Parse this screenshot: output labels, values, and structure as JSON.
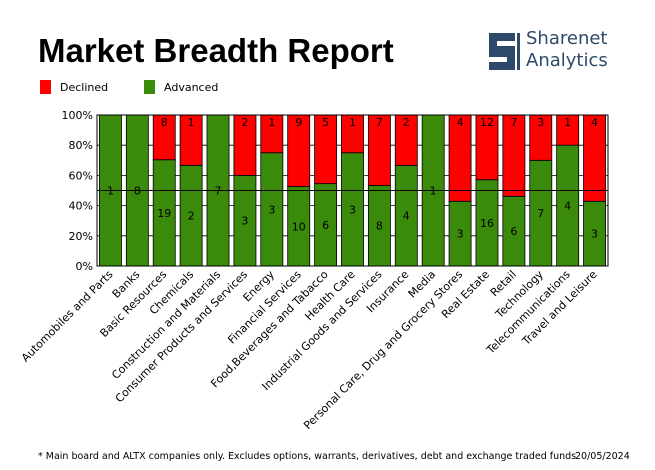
{
  "chart_data": {
    "type": "bar",
    "stacking": "percent",
    "title": "Market Breadth Report",
    "brand": [
      "Sharenet",
      "Analytics"
    ],
    "categories": [
      "Automobiles and Parts",
      "Banks",
      "Basic Resources",
      "Chemicals",
      "Construction and Materials",
      "Consumer Products and Services",
      "Energy",
      "Financial Services",
      "Food,Beverages and Tabacco",
      "Health Care",
      "Industrial Goods and Services",
      "Insurance",
      "Media",
      "Personal Care, Drug and Grocery Stores",
      "Real Estate",
      "Retail",
      "Technology",
      "Telecommunications",
      "Travel and Leisure"
    ],
    "series": [
      {
        "name": "Advanced",
        "color": "#3a8a0c",
        "values": [
          1,
          8,
          19,
          2,
          7,
          3,
          3,
          10,
          6,
          3,
          8,
          4,
          1,
          3,
          16,
          6,
          7,
          4,
          3
        ]
      },
      {
        "name": "Declined",
        "color": "#ff0000",
        "values": [
          0,
          0,
          8,
          1,
          0,
          2,
          1,
          9,
          5,
          1,
          7,
          2,
          0,
          4,
          12,
          7,
          3,
          1,
          4
        ]
      }
    ],
    "legend_order": [
      1,
      0
    ],
    "ylim": [
      0,
      100
    ],
    "yticks": [
      {
        "value": 0,
        "label": "0%"
      },
      {
        "value": 20,
        "label": "20%"
      },
      {
        "value": 40,
        "label": "40%"
      },
      {
        "value": 60,
        "label": "60%"
      },
      {
        "value": 80,
        "label": "80%"
      },
      {
        "value": 100,
        "label": "100%"
      }
    ],
    "grid": true,
    "reference_line": 50,
    "footnote": "* Main board and ALTX companies only. Excludes options, warrants, derivatives, debt and exchange traded funds",
    "date": "20/05/2024"
  }
}
